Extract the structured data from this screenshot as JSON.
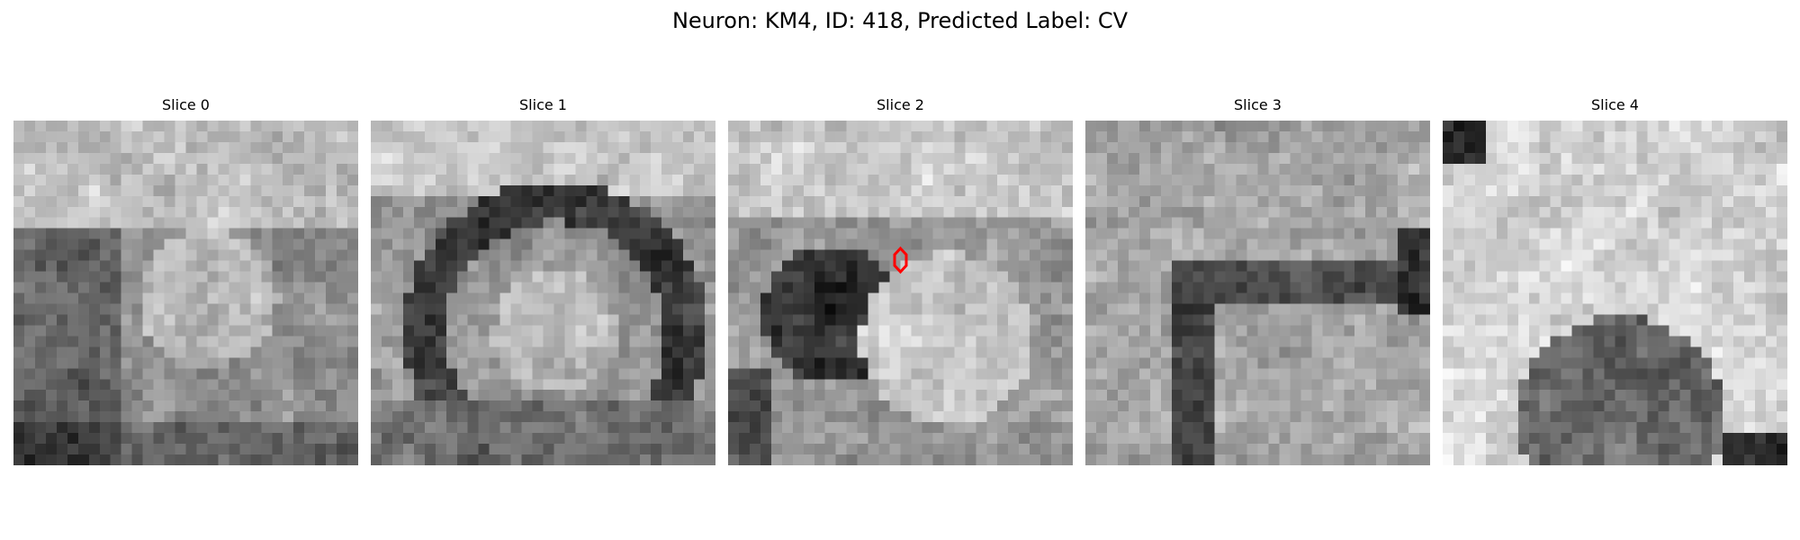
{
  "figure": {
    "title": "Neuron: KM4, ID: 418, Predicted Label: CV"
  },
  "slices": [
    {
      "title": "Slice 0",
      "seed": 11,
      "pattern": "blob-lower"
    },
    {
      "title": "Slice 1",
      "seed": 23,
      "pattern": "ring"
    },
    {
      "title": "Slice 2",
      "seed": 37,
      "pattern": "dark-left-bright-center"
    },
    {
      "title": "Slice 3",
      "seed": 53,
      "pattern": "texture-dark-cross"
    },
    {
      "title": "Slice 4",
      "seed": 71,
      "pattern": "bright-top-dark-bottom"
    }
  ],
  "marker": {
    "slice_index": 2,
    "shape": "hexagon",
    "color": "#ff0000"
  },
  "colormap": "gray",
  "grid_size": 32
}
